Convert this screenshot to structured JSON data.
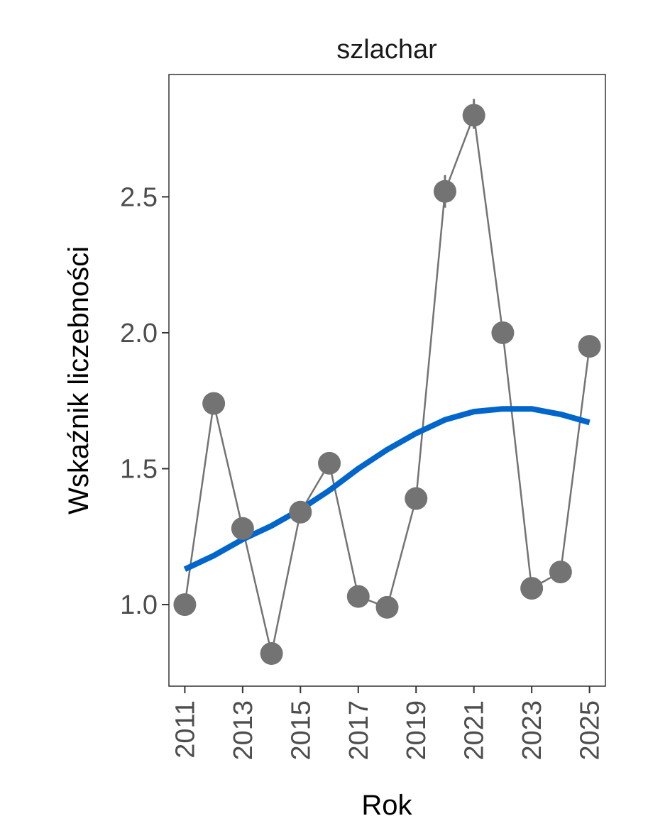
{
  "chart_data": {
    "type": "line",
    "title": "szlachar",
    "xlabel": "Rok",
    "ylabel": "Wskaźnik liczebności",
    "xlim": [
      2010.45,
      2025.55
    ],
    "ylim": [
      0.7,
      2.95
    ],
    "x_ticks": [
      2011,
      2013,
      2015,
      2017,
      2019,
      2021,
      2023,
      2025
    ],
    "x_tick_labels": [
      "2011",
      "2013",
      "2015",
      "2017",
      "2019",
      "2021",
      "2023",
      "2025"
    ],
    "y_ticks": [
      1.0,
      1.5,
      2.0,
      2.5
    ],
    "y_tick_labels": [
      "1.0",
      "1.5",
      "2.0",
      "2.5"
    ],
    "grid": false,
    "series": [
      {
        "color": "#737373",
        "x": [
          2011,
          2012,
          2013,
          2014,
          2015,
          2016,
          2017,
          2018,
          2019,
          2020,
          2021,
          2022,
          2023,
          2024,
          2025
        ],
        "y": [
          1.0,
          1.74,
          1.28,
          0.82,
          1.34,
          1.52,
          1.03,
          0.99,
          1.39,
          2.52,
          2.8,
          2.0,
          1.06,
          1.12,
          1.95
        ],
        "err_low": [
          1.0,
          1.74,
          1.28,
          0.82,
          1.34,
          1.52,
          1.03,
          0.99,
          1.39,
          2.46,
          2.75,
          2.0,
          1.06,
          1.12,
          1.92
        ],
        "err_high": [
          1.0,
          1.74,
          1.28,
          0.82,
          1.34,
          1.52,
          1.03,
          0.99,
          1.39,
          2.58,
          2.86,
          2.0,
          1.06,
          1.12,
          1.99
        ]
      },
      {
        "color": "#0066cc",
        "x": [
          2011,
          2012,
          2013,
          2014,
          2015,
          2016,
          2017,
          2018,
          2019,
          2020,
          2021,
          2022,
          2023,
          2024,
          2025
        ],
        "y": [
          1.13,
          1.18,
          1.24,
          1.29,
          1.35,
          1.42,
          1.5,
          1.57,
          1.63,
          1.68,
          1.71,
          1.72,
          1.72,
          1.7,
          1.67
        ]
      }
    ]
  }
}
